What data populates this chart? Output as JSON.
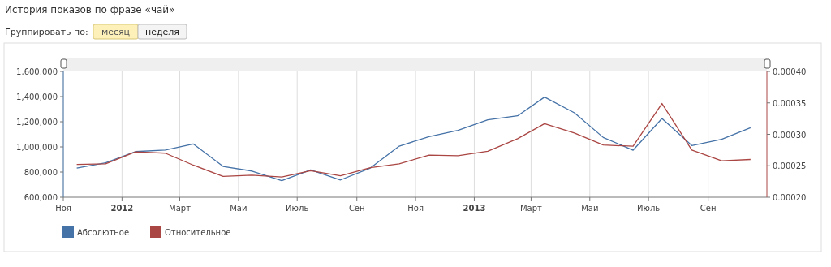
{
  "chart_data": {
    "type": "line",
    "title": "История показов по фразе «чай»",
    "annotations": [
      "Группировать по:",
      "месяц",
      "неделя"
    ],
    "x": [
      "2011-11-15",
      "2011-12-15",
      "2012-01-15",
      "2012-02-15",
      "2012-03-15",
      "2012-04-15",
      "2012-05-15",
      "2012-06-15",
      "2012-07-15",
      "2012-08-15",
      "2012-09-15",
      "2012-10-15",
      "2012-11-15",
      "2012-12-15",
      "2013-01-15",
      "2013-02-15",
      "2013-03-15",
      "2013-04-15",
      "2013-05-15",
      "2013-06-15",
      "2013-07-15",
      "2013-08-15",
      "2013-09-15",
      "2013-10-15"
    ],
    "series": [
      {
        "name": "Абсолютное",
        "color": "#4572a7",
        "values": [
          832000,
          873000,
          963000,
          975000,
          1024000,
          845000,
          808000,
          731000,
          817000,
          737000,
          832000,
          1006000,
          1082000,
          1131000,
          1215000,
          1247000,
          1396000,
          1271000,
          1075000,
          974000,
          1226000,
          1011000,
          1060000,
          1153000
        ]
      },
      {
        "name": "Относительное",
        "color": "#aa4643",
        "axis": "y2",
        "values": [
          0.000252,
          0.000253,
          0.000272,
          0.00027,
          0.000251,
          0.000233,
          0.000235,
          0.000232,
          0.000242,
          0.000234,
          0.000247,
          0.000253,
          0.000267,
          0.000266,
          0.000273,
          0.000293,
          0.000317,
          0.000302,
          0.000283,
          0.000281,
          0.000349,
          0.000275,
          0.000258,
          0.00026
        ]
      }
    ],
    "xlim": [
      "2011-11-01",
      "2013-11-01"
    ],
    "xticks": [
      {
        "value": "2011-11-01",
        "label": "Ноя"
      },
      {
        "value": "2012-01-01",
        "label": "2012"
      },
      {
        "value": "2012-03-01",
        "label": "Март"
      },
      {
        "value": "2012-05-01",
        "label": "Май"
      },
      {
        "value": "2012-07-01",
        "label": "Июль"
      },
      {
        "value": "2012-09-01",
        "label": "Сен"
      },
      {
        "value": "2012-11-01",
        "label": "Ноя"
      },
      {
        "value": "2013-01-01",
        "label": "2013"
      },
      {
        "value": "2013-03-01",
        "label": "Март"
      },
      {
        "value": "2013-05-01",
        "label": "Май"
      },
      {
        "value": "2013-07-01",
        "label": "Июль"
      },
      {
        "value": "2013-09-01",
        "label": "Сен"
      }
    ],
    "ylim": [
      600000,
      1600000
    ],
    "yticks": [
      {
        "value": 600000,
        "label": "600,000"
      },
      {
        "value": 800000,
        "label": "800,000"
      },
      {
        "value": 1000000,
        "label": "1,000,000"
      },
      {
        "value": 1200000,
        "label": "1,200,000"
      },
      {
        "value": 1400000,
        "label": "1,400,000"
      },
      {
        "value": 1600000,
        "label": "1,600,000"
      }
    ],
    "y2lim": [
      0.0002,
      0.0004
    ],
    "y2ticks": [
      {
        "value": 0.0002,
        "label": "0.00020"
      },
      {
        "value": 0.00025,
        "label": "0.00025"
      },
      {
        "value": 0.0003,
        "label": "0.00030"
      },
      {
        "value": 0.00035,
        "label": "0.00035"
      },
      {
        "value": 0.0004,
        "label": "0.00040"
      }
    ],
    "grid": "x",
    "legend": "bottom left",
    "marker": "none",
    "line_style": "solid"
  }
}
